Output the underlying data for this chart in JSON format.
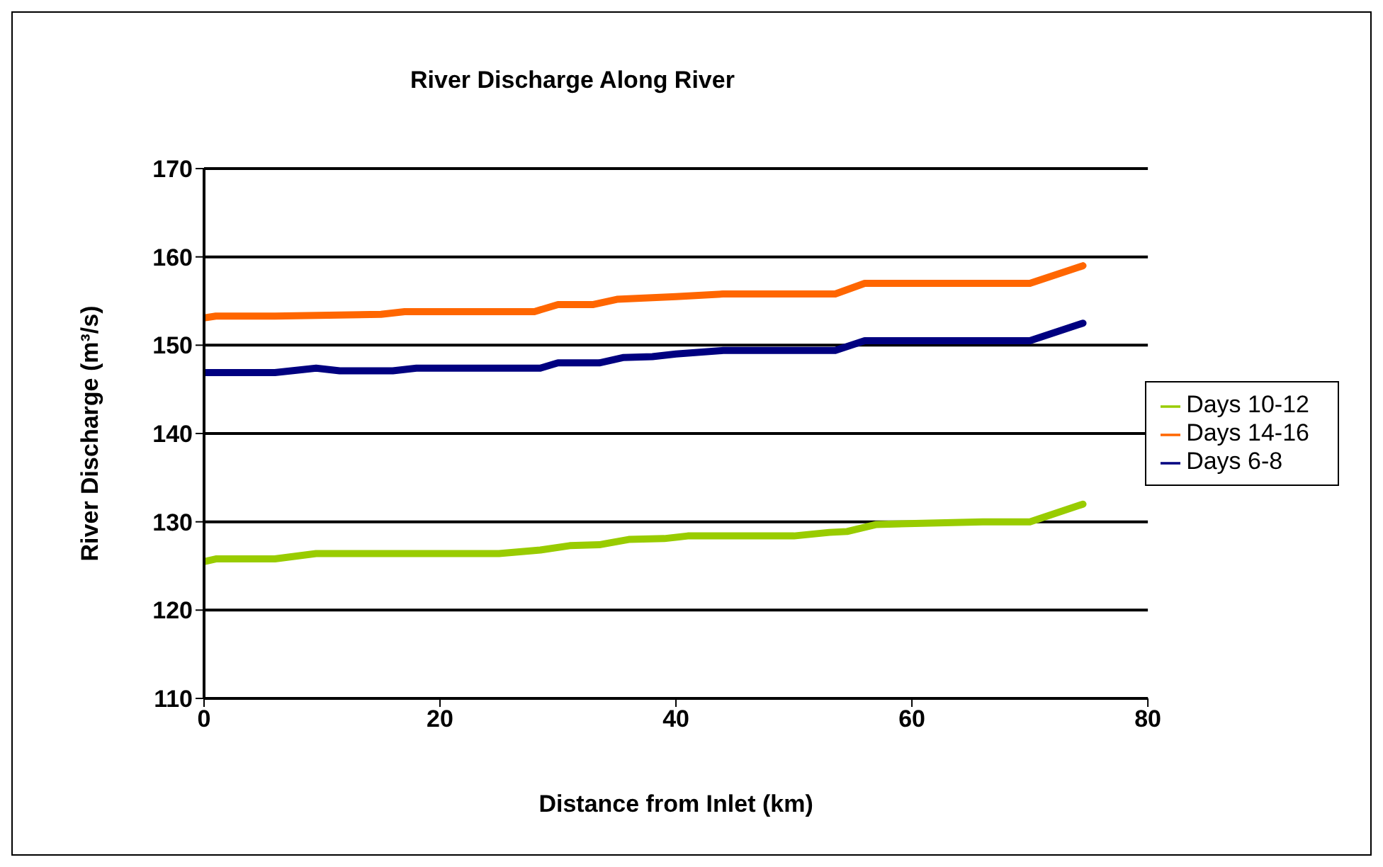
{
  "chart_data": {
    "type": "line",
    "title": "River Discharge Along River",
    "xlabel": "Distance from Inlet (km)",
    "ylabel": "River Discharge (m³/s)",
    "xlim": [
      0,
      80
    ],
    "xticks": [
      0,
      20,
      40,
      60,
      80
    ],
    "ylim": [
      110,
      170
    ],
    "yticks": [
      110,
      120,
      130,
      140,
      150,
      160,
      170
    ],
    "grid": "y",
    "legend": "right",
    "marker": "none",
    "line_style": "solid",
    "series": [
      {
        "name": "Days 6-8",
        "color": "#000080",
        "x": [
          0,
          6,
          9.5,
          11.5,
          16,
          18,
          28.5,
          30,
          33.5,
          35.5,
          38,
          40,
          44,
          53.5,
          56,
          70,
          74.5
        ],
        "values": [
          146.9,
          146.9,
          147.4,
          147.1,
          147.1,
          147.4,
          147.4,
          148,
          148,
          148.6,
          148.7,
          149,
          149.4,
          149.4,
          150.5,
          150.5,
          152.5
        ]
      },
      {
        "name": "Days 10-12",
        "color": "#99cc00",
        "x": [
          0,
          1,
          6,
          9.5,
          25,
          28.5,
          31,
          33.5,
          36,
          39,
          41,
          50,
          53,
          54.5,
          57,
          66,
          70,
          74.5
        ],
        "values": [
          125.5,
          125.8,
          125.8,
          126.4,
          126.4,
          126.8,
          127.3,
          127.4,
          128,
          128.1,
          128.4,
          128.4,
          128.8,
          128.9,
          129.7,
          130,
          130,
          132
        ]
      },
      {
        "name": "Days 14-16",
        "color": "#ff6600",
        "x": [
          0,
          1,
          6,
          15,
          17,
          28,
          30,
          33,
          35,
          40,
          44,
          53.5,
          56,
          70,
          74.5
        ],
        "values": [
          153.1,
          153.3,
          153.3,
          153.5,
          153.8,
          153.8,
          154.6,
          154.6,
          155.2,
          155.5,
          155.8,
          155.8,
          157,
          157,
          159
        ]
      }
    ]
  }
}
